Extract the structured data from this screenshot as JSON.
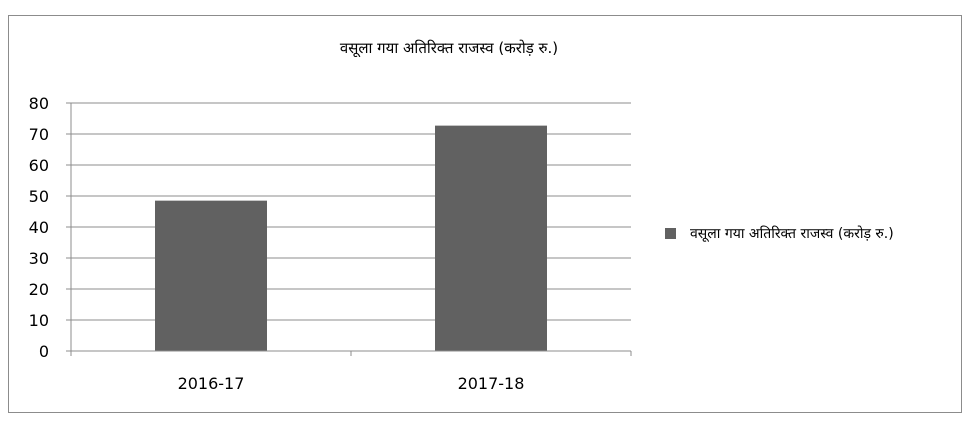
{
  "chart_data": {
    "type": "bar",
    "title": "वसूला गया अतिरिक्त राजस्व (करोड़ रु.)",
    "categories": [
      "2016-17",
      "2017-18"
    ],
    "series": [
      {
        "name": "वसूला गया अतिरिक्त राजस्व (करोड़ रु.)",
        "values": [
          48.5,
          72.7
        ],
        "color": "#616161"
      }
    ],
    "ylim": [
      0,
      80
    ],
    "yticks": [
      0,
      10,
      20,
      30,
      40,
      50,
      60,
      70,
      80
    ],
    "grid": true,
    "legend_position": "right"
  }
}
